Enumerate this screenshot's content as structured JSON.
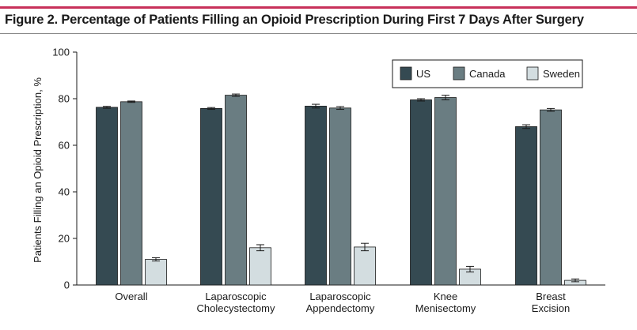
{
  "figure": {
    "title": "Figure 2. Percentage of Patients Filling an Opioid Prescription During First 7 Days After Surgery"
  },
  "chart_data": {
    "type": "bar",
    "title": "Figure 2. Percentage of Patients Filling an Opioid Prescription During First 7 Days After Surgery",
    "xlabel": "",
    "ylabel": "Patients Filling an Opioid Prescription, %",
    "ylim": [
      0,
      100
    ],
    "yticks": [
      0,
      20,
      40,
      60,
      80,
      100
    ],
    "grid": false,
    "legend_position": "top-right",
    "categories": [
      [
        "Overall"
      ],
      [
        "Laparoscopic",
        "Cholecystectomy"
      ],
      [
        "Laparoscopic",
        "Appendectomy"
      ],
      [
        "Knee",
        "Menisectomy"
      ],
      [
        "Breast",
        "Excision"
      ]
    ],
    "series": [
      {
        "name": "US",
        "color": "#354a52",
        "values": [
          76.3,
          75.8,
          76.8,
          79.5,
          68.0
        ],
        "error": [
          0.4,
          0.4,
          0.8,
          0.5,
          0.8
        ]
      },
      {
        "name": "Canada",
        "color": "#6a7d82",
        "values": [
          78.7,
          81.5,
          76.0,
          80.5,
          75.2
        ],
        "error": [
          0.3,
          0.5,
          0.6,
          1.0,
          0.6
        ]
      },
      {
        "name": "Sweden",
        "color": "#d3dde0",
        "values": [
          11.0,
          16.0,
          16.3,
          6.8,
          2.0
        ],
        "error": [
          0.7,
          1.3,
          1.6,
          1.2,
          0.6
        ]
      }
    ]
  }
}
